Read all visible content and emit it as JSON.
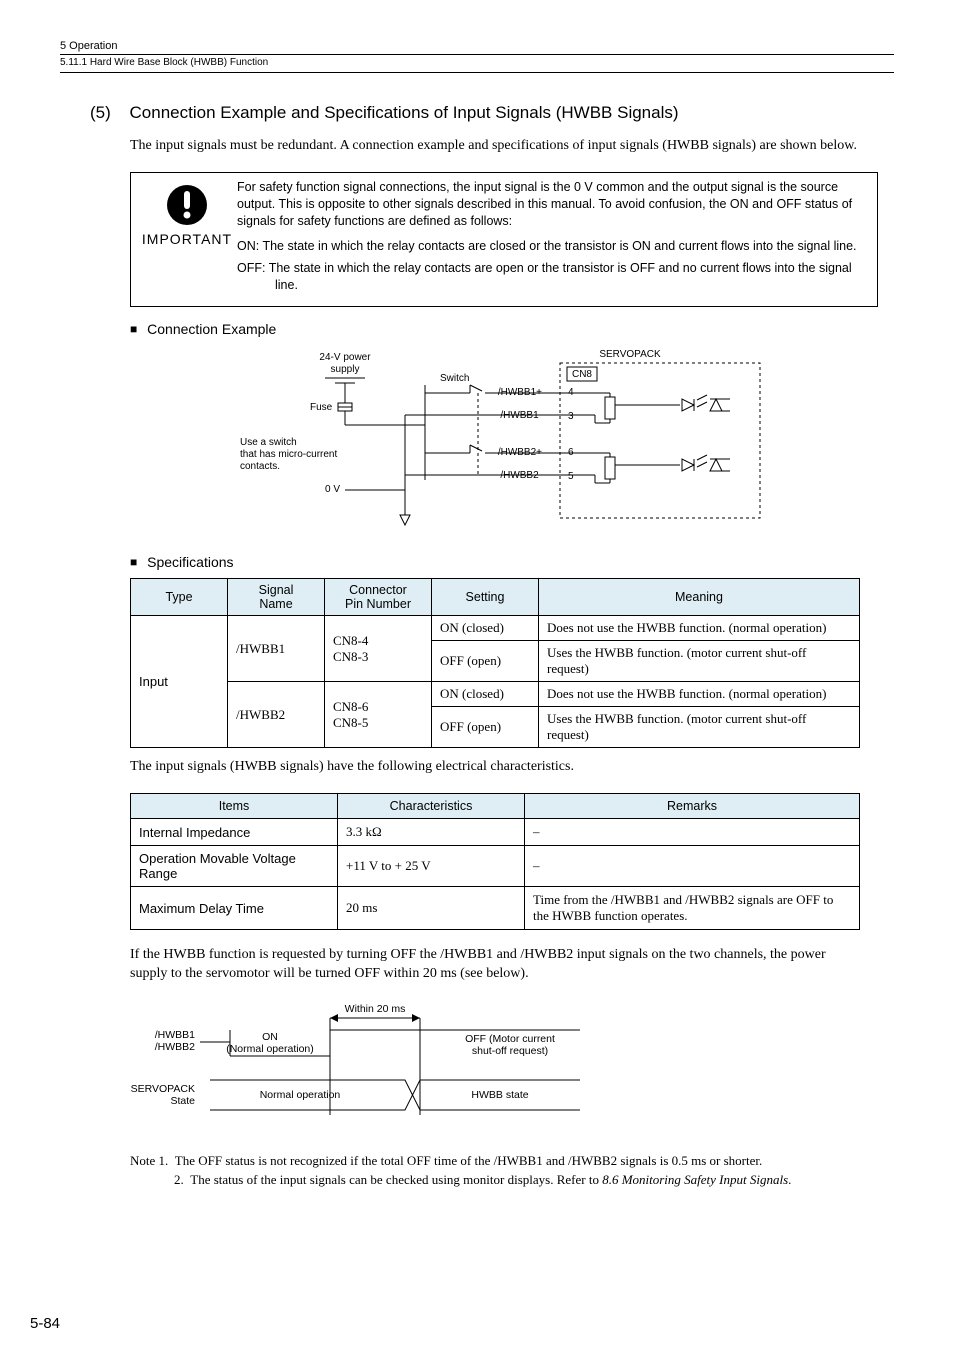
{
  "header": {
    "chapter": "5  Operation",
    "section": "5.11.1  Hard Wire Base Block (HWBB) Function"
  },
  "section": {
    "num": "(5)",
    "title": "Connection Example and Specifications of Input Signals (HWBB Signals)"
  },
  "intro": "The input signals must be redundant. A connection example and specifications of input signals (HWBB signals) are shown below.",
  "important": {
    "label": "IMPORTANT",
    "para": "For safety function signal connections, the input signal is the 0 V common and the output signal is the source output. This is opposite to other signals described in this manual. To avoid confusion, the ON and OFF status of signals for safety functions are defined as follows:",
    "on": "ON: The state in which the relay contacts are closed or the transistor is ON and current flows into the signal line.",
    "off": "OFF: The state in which the relay contacts are open or the transistor is OFF and no current flows into the signal line."
  },
  "subs": {
    "conn_example": "Connection Example",
    "specs": "Specifications"
  },
  "conn_diagram": {
    "power": "24-V power\nsupply",
    "switch": "Switch",
    "fuse": "Fuse",
    "note": "Use a switch\nthat has micro-current\ncontacts.",
    "zero_v": "0 V",
    "servopack": "SERVOPACK",
    "cn8": "CN8",
    "hwbb1p": "/HWBB1+",
    "pin4": "4",
    "hwbb1m": "/HWBB1-",
    "pin3": "3",
    "hwbb2p": "/HWBB2+",
    "pin6": "6",
    "hwbb2m": "/HWBB2-",
    "pin5": "5"
  },
  "spec_table": {
    "headers": [
      "Type",
      "Signal\nName",
      "Connector\nPin Number",
      "Setting",
      "Meaning"
    ],
    "type": "Input",
    "sig1": "/HWBB1",
    "sig2": "/HWBB2",
    "pins1": "CN8-4\nCN8-3",
    "pins2": "CN8-6\nCN8-5",
    "set_on": "ON (closed)",
    "set_off": "OFF (open)",
    "mean_on": "Does not use the HWBB function. (normal operation)",
    "mean_off": "Uses the HWBB function. (motor current shut-off request)"
  },
  "elec_intro": "The input signals (HWBB signals) have the following electrical characteristics.",
  "elec_table": {
    "headers": [
      "Items",
      "Characteristics",
      "Remarks"
    ],
    "rows": [
      {
        "item": "Internal Impedance",
        "char": "3.3 kΩ",
        "rem": "–"
      },
      {
        "item": "Operation Movable Voltage Range",
        "char": "+11 V to + 25 V",
        "rem": "–"
      },
      {
        "item": "Maximum Delay Time",
        "char": "20 ms",
        "rem": "Time from the /HWBB1 and /HWBB2 signals are OFF to the HWBB function operates."
      }
    ]
  },
  "timing_intro": "If the HWBB function is requested by turning OFF the /HWBB1 and /HWBB2 input signals on the two channels, the power supply to the servomotor will be turned OFF within 20 ms (see below).",
  "timing": {
    "within": "Within 20 ms",
    "sig_label1": "/HWBB1",
    "sig_label2": "/HWBB2",
    "on": "ON",
    "on_sub": "(Normal operation)",
    "off": "OFF (Motor current\nshut-off request)",
    "sp_label": "SERVOPACK\nState",
    "normal": "Normal operation",
    "hwbb": "HWBB state"
  },
  "notes": {
    "n1_label": "Note 1.",
    "n1": "The OFF status is not recognized if the total OFF time of the /HWBB1 and /HWBB2 signals is 0.5 ms or shorter.",
    "n2_label": "2.",
    "n2a": "The status of the input signals can be checked using monitor displays. Refer to ",
    "n2b": "8.6  Monitoring Safety Input Signals",
    "n2c": "."
  },
  "page_num": "5-84"
}
